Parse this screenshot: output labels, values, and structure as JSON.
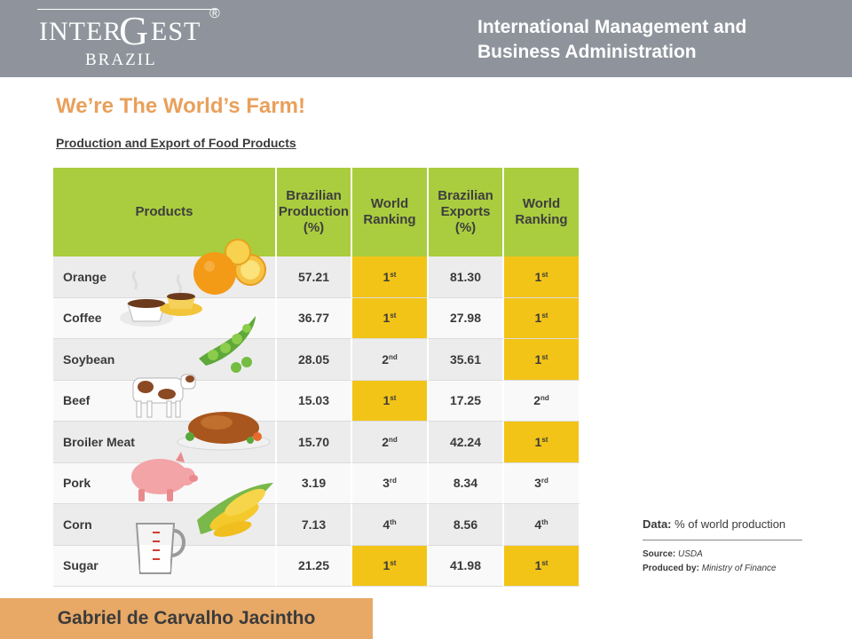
{
  "header": {
    "logo": {
      "inter": "INTER",
      "g": "G",
      "est": "EST",
      "reg": "®",
      "brazil": "BRAZIL"
    },
    "title_line1": "International Management and",
    "title_line2": "Business Administration"
  },
  "main": {
    "title": "We’re The World’s Farm!",
    "subtitle": "Production and Export of Food Products"
  },
  "table": {
    "headers": {
      "products": "Products",
      "prod_pct": [
        "Brazilian",
        "Production",
        "(%)"
      ],
      "prod_rank": [
        "World",
        "Ranking"
      ],
      "exp_pct": [
        "Brazilian",
        "Exports",
        "(%)"
      ],
      "exp_rank": [
        "World",
        "Ranking"
      ]
    },
    "rows": [
      {
        "product": "Orange",
        "production": "57.21",
        "prod_rank": "1",
        "prod_suffix": "st",
        "exports": "81.30",
        "exp_rank": "1",
        "exp_suffix": "st"
      },
      {
        "product": "Coffee",
        "production": "36.77",
        "prod_rank": "1",
        "prod_suffix": "st",
        "exports": "27.98",
        "exp_rank": "1",
        "exp_suffix": "st"
      },
      {
        "product": "Soybean",
        "production": "28.05",
        "prod_rank": "2",
        "prod_suffix": "nd",
        "exports": "35.61",
        "exp_rank": "1",
        "exp_suffix": "st"
      },
      {
        "product": "Beef",
        "production": "15.03",
        "prod_rank": "1",
        "prod_suffix": "st",
        "exports": "17.25",
        "exp_rank": "2",
        "exp_suffix": "nd"
      },
      {
        "product": "Broiler Meat",
        "production": "15.70",
        "prod_rank": "2",
        "prod_suffix": "nd",
        "exports": "42.24",
        "exp_rank": "1",
        "exp_suffix": "st"
      },
      {
        "product": "Pork",
        "production": "3.19",
        "prod_rank": "3",
        "prod_suffix": "rd",
        "exports": "8.34",
        "exp_rank": "3",
        "exp_suffix": "rd"
      },
      {
        "product": "Corn",
        "production": "7.13",
        "prod_rank": "4",
        "prod_suffix": "th",
        "exports": "8.56",
        "exp_rank": "4",
        "exp_suffix": "th"
      },
      {
        "product": "Sugar",
        "production": "21.25",
        "prod_rank": "1",
        "prod_suffix": "st",
        "exports": "41.98",
        "exp_rank": "1",
        "exp_suffix": "st"
      }
    ],
    "highlight_color": "#f3c418",
    "header_color": "#a9cd3e"
  },
  "note": {
    "data_label": "Data:",
    "data_value": "% of world production",
    "source_label": "Source:",
    "source_value": "USDA",
    "produced_label": "Produced by:",
    "produced_value": "Ministry of Finance"
  },
  "footer": {
    "author": "Gabriel de Carvalho Jacintho"
  }
}
